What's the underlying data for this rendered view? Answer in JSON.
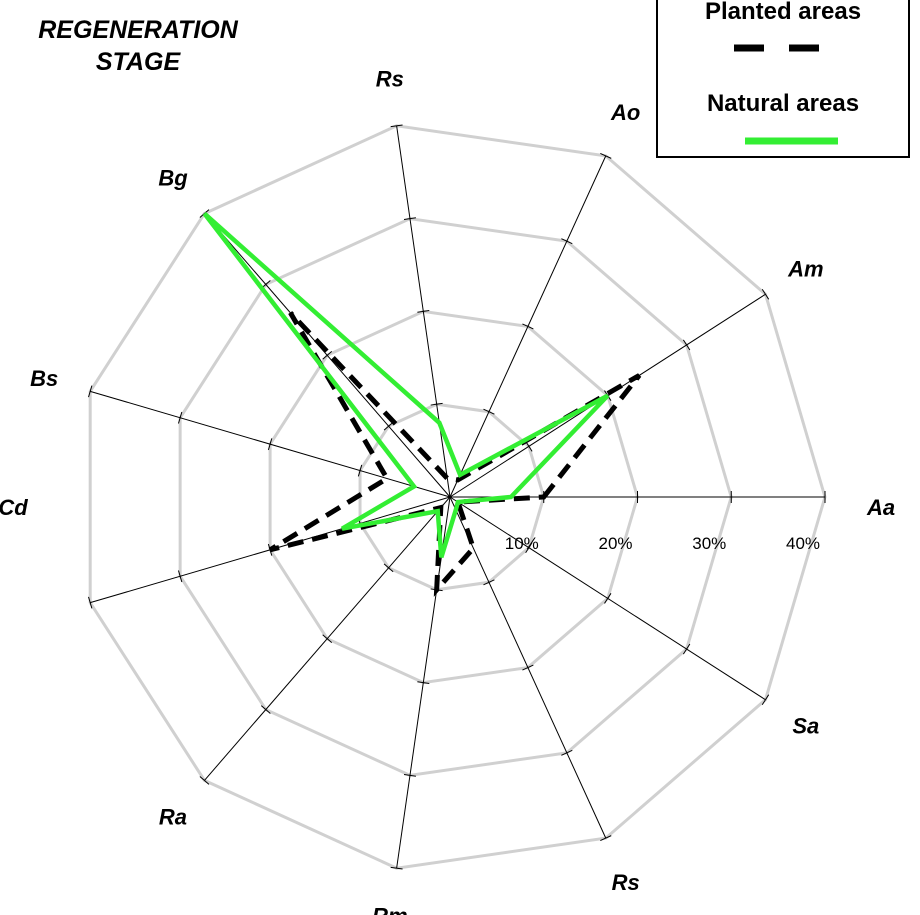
{
  "title": "REGENERATION STAGE",
  "legend": {
    "items": [
      {
        "label": "Planted areas",
        "color": "#000000",
        "dash": true
      },
      {
        "label": "Natural areas",
        "color": "#33ee33",
        "dash": false
      }
    ]
  },
  "chart_data": {
    "type": "radar",
    "title": "REGENERATION STAGE",
    "categories": [
      "Aa",
      "Am",
      "Ao",
      "Rs",
      "Bg",
      "Bs",
      "Cd",
      "Ra",
      "Rm",
      "Rs",
      "Sa"
    ],
    "rlim": [
      0,
      40
    ],
    "ticks": [
      "10%",
      "20%",
      "30%",
      "40%"
    ],
    "tick_values": [
      10,
      20,
      30,
      40
    ],
    "grid": true,
    "legend_position": "top-right",
    "series": [
      {
        "name": "Planted areas",
        "color": "#000000",
        "style": "dashed",
        "values": [
          10,
          24,
          2,
          2,
          26,
          7,
          20,
          1.5,
          10,
          6,
          1
        ]
      },
      {
        "name": "Natural areas",
        "color": "#33ee33",
        "style": "solid",
        "values": [
          6.5,
          20,
          2.6,
          8,
          40,
          4,
          12,
          2,
          6.5,
          1.5,
          1
        ]
      }
    ]
  }
}
